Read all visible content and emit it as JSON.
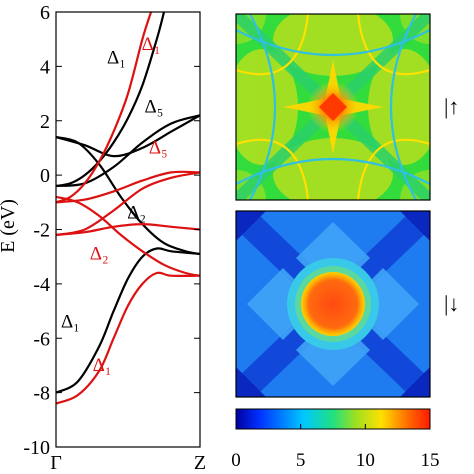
{
  "chart_data": [
    {
      "type": "line",
      "ylabel": "E (eV)",
      "ylim": [
        -10,
        6
      ],
      "yticks": [
        -10,
        -8,
        -6,
        -4,
        -2,
        0,
        2,
        4,
        6
      ],
      "xlim": [
        0,
        1
      ],
      "xticks": [
        {
          "x": 0,
          "label": "Γ"
        },
        {
          "x": 1,
          "label": "Z"
        }
      ],
      "grid": false,
      "colors": {
        "majority": "#000000",
        "minority": "#dd1111"
      },
      "series": [
        {
          "spin": "majority",
          "label": "Δ₁",
          "x": [
            0,
            0.1,
            0.2,
            0.3,
            0.4,
            0.5,
            0.6,
            0.7,
            0.75
          ],
          "y": [
            -0.4,
            -0.3,
            0,
            0.5,
            1.2,
            2.1,
            3.3,
            5.0,
            6.0
          ]
        },
        {
          "spin": "majority",
          "label": "Δ₅",
          "x": [
            0,
            0.2,
            0.4,
            0.6,
            0.8,
            1.0
          ],
          "y": [
            1.4,
            1.1,
            0.7,
            1.0,
            1.6,
            2.2
          ]
        },
        {
          "spin": "majority",
          "label": "Δ₅",
          "x": [
            0,
            0.2,
            0.4,
            0.6,
            0.8,
            1.0
          ],
          "y": [
            -0.4,
            -0.3,
            0.3,
            1.2,
            1.9,
            2.2
          ]
        },
        {
          "spin": "majority",
          "label": "Δ₂",
          "x": [
            0,
            0.15,
            0.3,
            0.45,
            0.6,
            0.75,
            0.9,
            1.0
          ],
          "y": [
            1.4,
            1.2,
            0.4,
            -0.8,
            -1.8,
            -2.5,
            -2.8,
            -2.9
          ]
        },
        {
          "spin": "majority",
          "label": "Δ₁",
          "x": [
            0,
            0.15,
            0.3,
            0.4,
            0.5,
            0.6,
            0.7,
            0.8,
            1.0
          ],
          "y": [
            -8.0,
            -7.6,
            -6.3,
            -5.0,
            -3.8,
            -3.0,
            -2.7,
            -2.8,
            -2.9
          ]
        },
        {
          "spin": "minority",
          "label": "Δ₁",
          "x": [
            0,
            0.1,
            0.2,
            0.3,
            0.4,
            0.5,
            0.6,
            0.66
          ],
          "y": [
            -1.0,
            -0.8,
            -0.3,
            0.5,
            1.6,
            3.0,
            5.0,
            6.0
          ]
        },
        {
          "spin": "minority",
          "label": "Δ₅",
          "x": [
            0,
            0.2,
            0.4,
            0.6,
            0.8,
            1.0
          ],
          "y": [
            -2.2,
            -2.0,
            -1.3,
            -0.5,
            -0.1,
            0.1
          ]
        },
        {
          "spin": "minority",
          "label": "Δ₅",
          "x": [
            0,
            0.2,
            0.4,
            0.6,
            0.8,
            1.0
          ],
          "y": [
            -1.0,
            -0.9,
            -0.6,
            -0.2,
            0.1,
            0.1
          ]
        },
        {
          "spin": "minority",
          "label": "Δ₂",
          "x": [
            0,
            0.15,
            0.3,
            0.45,
            0.6,
            0.75,
            0.9,
            1.0
          ],
          "y": [
            -0.8,
            -1.0,
            -1.5,
            -2.2,
            -2.8,
            -3.3,
            -3.6,
            -3.7
          ]
        },
        {
          "spin": "minority",
          "label": "Δ₂",
          "x": [
            0,
            0.2,
            0.4,
            0.6,
            0.8,
            1.0
          ],
          "y": [
            -2.2,
            -2.1,
            -1.9,
            -1.8,
            -1.9,
            -2.0
          ]
        },
        {
          "spin": "minority",
          "label": "Δ₁",
          "x": [
            0,
            0.15,
            0.3,
            0.4,
            0.5,
            0.6,
            0.7,
            0.8,
            1.0
          ],
          "y": [
            -8.4,
            -8.1,
            -7.2,
            -6.0,
            -4.8,
            -4.0,
            -3.6,
            -3.7,
            -3.7
          ]
        }
      ],
      "annotations": [
        {
          "text": "Δ₁",
          "x": 0.42,
          "y": 4.1,
          "spin": "majority"
        },
        {
          "text": "Δ₁",
          "x": 0.66,
          "y": 4.6,
          "spin": "minority"
        },
        {
          "text": "Δ₅",
          "x": 0.68,
          "y": 2.3,
          "spin": "majority"
        },
        {
          "text": "Δ₅",
          "x": 0.71,
          "y": 0.8,
          "spin": "minority"
        },
        {
          "text": "Δ₂",
          "x": 0.56,
          "y": -1.6,
          "spin": "majority"
        },
        {
          "text": "Δ₂",
          "x": 0.3,
          "y": -3.1,
          "spin": "minority"
        },
        {
          "text": "Δ₁",
          "x": 0.1,
          "y": -5.6,
          "spin": "majority"
        },
        {
          "text": "Δ₁",
          "x": 0.32,
          "y": -7.2,
          "spin": "minority"
        }
      ]
    },
    {
      "type": "heatmap",
      "panels": [
        {
          "label": "|↑",
          "spin": "majority"
        },
        {
          "label": "|↓",
          "spin": "minority"
        }
      ],
      "colorbar": {
        "min": 0,
        "max": 15,
        "ticks": [
          0,
          5,
          10,
          15
        ],
        "colormap": "jet"
      }
    }
  ]
}
